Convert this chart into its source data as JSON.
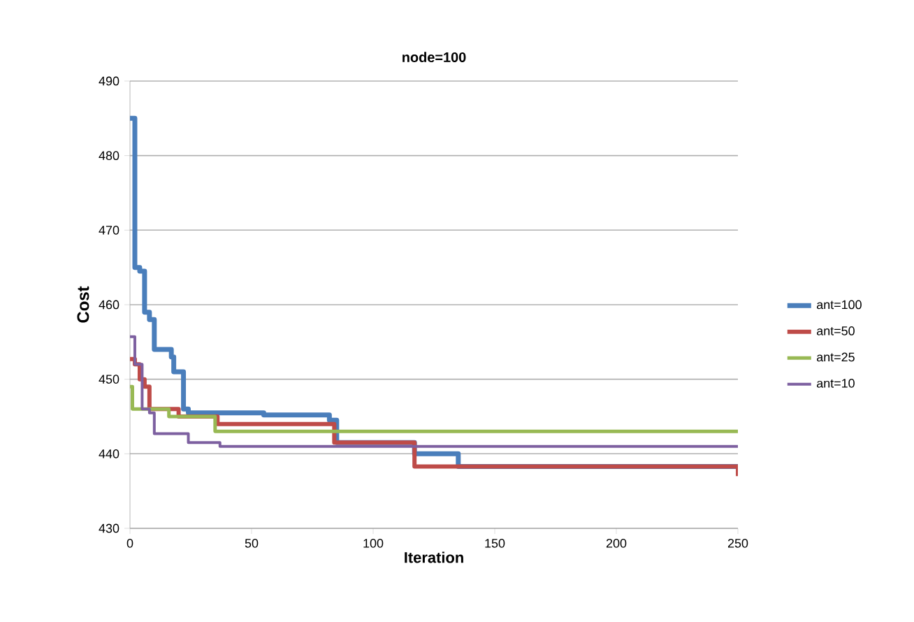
{
  "chart_data": {
    "type": "step",
    "title": "node=100",
    "xlabel": "Iteration",
    "ylabel": "Cost",
    "xlim": [
      0,
      250
    ],
    "xticks": [
      0,
      50,
      100,
      150,
      200,
      250
    ],
    "ylim": [
      430,
      490
    ],
    "yticks": [
      430,
      440,
      450,
      460,
      470,
      480,
      490
    ],
    "grid": "y",
    "legend": "right",
    "series": [
      {
        "name": "ant=100",
        "color": "#4a7ebb",
        "x": [
          0,
          2,
          4,
          6,
          8,
          10,
          17,
          18,
          22,
          24,
          55,
          82,
          85,
          117,
          135,
          250
        ],
        "values": [
          485,
          465,
          464.5,
          459,
          458,
          454,
          453,
          451,
          446,
          445.5,
          445.2,
          444.5,
          441.5,
          440,
          438.3,
          438.3
        ]
      },
      {
        "name": "ant=50",
        "color": "#be4b48",
        "x": [
          0,
          2,
          4,
          6,
          8,
          20,
          36,
          84,
          117,
          249,
          250
        ],
        "values": [
          452.7,
          452,
          450,
          449,
          446,
          445,
          444,
          441.5,
          438.3,
          438.3,
          437
        ]
      },
      {
        "name": "ant=25",
        "color": "#98b954",
        "x": [
          0,
          1,
          16,
          35,
          250
        ],
        "values": [
          449,
          446,
          445,
          443,
          443
        ]
      },
      {
        "name": "ant=10",
        "color": "#7d60a0",
        "x": [
          0,
          2,
          5,
          8,
          10,
          24,
          37,
          250
        ],
        "values": [
          455.7,
          452,
          446,
          445.5,
          442.7,
          441.5,
          441,
          441
        ]
      }
    ]
  }
}
